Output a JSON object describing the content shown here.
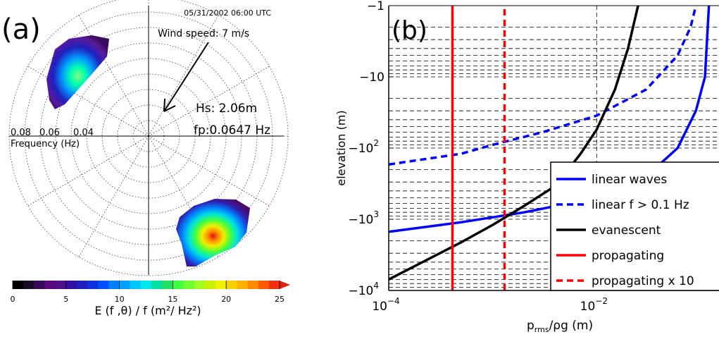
{
  "chart_data": [
    {
      "type": "heatmap",
      "panel_label": "(a)",
      "timestamp": "05/31/2002 06:00 UTC",
      "wind_label": "Wind speed: 7 m/s",
      "hs_label": "Hs: 2.06m",
      "fp_label": "fp:0.0647 Hz",
      "radial_axis_label": "Frequency (Hz)",
      "radial_ticks": [
        "0.08",
        "0.06",
        "0.04"
      ],
      "colorbar_label": "E (f ,θ) / f   (m²/ Hz²)",
      "colorbar_ticks": [
        "0",
        "5",
        "10",
        "15",
        "20",
        "25"
      ],
      "colorbar_range": [
        0,
        25
      ],
      "spectral_peaks": [
        {
          "name": "northwest-lobe",
          "peak_value": 15
        },
        {
          "name": "southeast-lobe",
          "peak_value": 25
        }
      ]
    },
    {
      "type": "line",
      "panel_label": "(b)",
      "xlabel": "p_rms/ρg     (m)",
      "ylabel": "elevation (m)",
      "x_scale": "log",
      "y_scale": "log",
      "xlim": [
        0.0001,
        0.15
      ],
      "ylim": [
        -10000,
        -1
      ],
      "x_ticks": [
        "10",
        "10"
      ],
      "x_tick_exponents": [
        "−4",
        "−2"
      ],
      "y_ticks": [
        "−1",
        "−10",
        "−10",
        "−10",
        "−10"
      ],
      "y_tick_exponents": [
        "",
        "",
        "2",
        "3",
        "4"
      ],
      "grid": true,
      "legend_position": "bottom-right",
      "series": [
        {
          "name": "linear waves",
          "color": "#0000ff",
          "style": "solid",
          "x": [
            0.0001,
            0.0005,
            0.002,
            0.01,
            0.03,
            0.06,
            0.09,
            0.11,
            0.12
          ],
          "y": [
            -1500,
            -1100,
            -800,
            -500,
            -250,
            -100,
            -30,
            -10,
            -1
          ]
        },
        {
          "name": "linear f > 0.1 Hz",
          "color": "#0000ff",
          "style": "dashed",
          "x": [
            0.0001,
            0.0005,
            0.001,
            0.003,
            0.01,
            0.03,
            0.06,
            0.08,
            0.09
          ],
          "y": [
            -170,
            -120,
            -90,
            -60,
            -35,
            -15,
            -5,
            -2,
            -1
          ]
        },
        {
          "name": "evanescent",
          "color": "#000000",
          "style": "solid",
          "x": [
            0.0001,
            0.0005,
            0.001,
            0.002,
            0.004,
            0.007,
            0.01,
            0.015,
            0.02,
            0.025
          ],
          "y": [
            -7000,
            -2100,
            -1200,
            -650,
            -340,
            -120,
            -55,
            -15,
            -4,
            -1
          ]
        },
        {
          "name": "propagating",
          "color": "#ff0000",
          "style": "solid",
          "x": [
            0.00041,
            0.00041
          ],
          "y": [
            -10000,
            -1
          ]
        },
        {
          "name": "propagating x 10",
          "color": "#ff0000",
          "style": "dashed",
          "x": [
            0.0013,
            0.0013
          ],
          "y": [
            -10000,
            -1
          ]
        }
      ]
    }
  ]
}
